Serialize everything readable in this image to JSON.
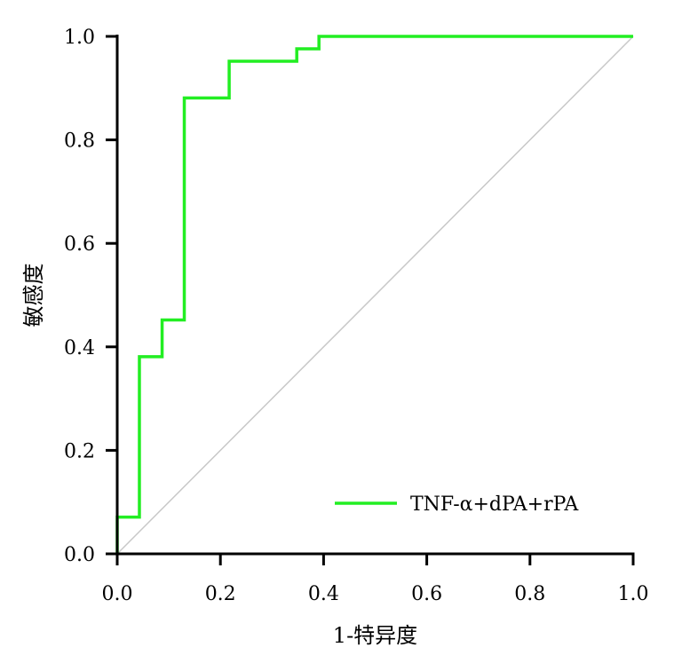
{
  "chart_data": {
    "type": "line",
    "title": "",
    "xlabel": "1-特异度",
    "ylabel": "敏感度",
    "xlim": [
      0,
      1
    ],
    "ylim": [
      0,
      1
    ],
    "x_ticks": [
      "0.0",
      "0.2",
      "0.4",
      "0.6",
      "0.8",
      "1.0"
    ],
    "y_ticks": [
      "0.0",
      "0.2",
      "0.4",
      "0.6",
      "0.8",
      "1.0"
    ],
    "grid": false,
    "legend_position": "bottom-right",
    "series": [
      {
        "name": "TNF-α+dPA+rPA",
        "color": "#22ee22",
        "step": true,
        "points": [
          [
            0.0,
            0.0
          ],
          [
            0.0,
            0.071
          ],
          [
            0.043,
            0.071
          ],
          [
            0.043,
            0.381
          ],
          [
            0.087,
            0.381
          ],
          [
            0.087,
            0.452
          ],
          [
            0.13,
            0.452
          ],
          [
            0.13,
            0.881
          ],
          [
            0.217,
            0.881
          ],
          [
            0.217,
            0.952
          ],
          [
            0.348,
            0.952
          ],
          [
            0.348,
            0.976
          ],
          [
            0.391,
            0.976
          ],
          [
            0.391,
            1.0
          ],
          [
            1.0,
            1.0
          ]
        ]
      }
    ],
    "reference_line": {
      "color": "#c8c8c8",
      "points": [
        [
          0,
          0
        ],
        [
          1,
          1
        ]
      ]
    }
  }
}
